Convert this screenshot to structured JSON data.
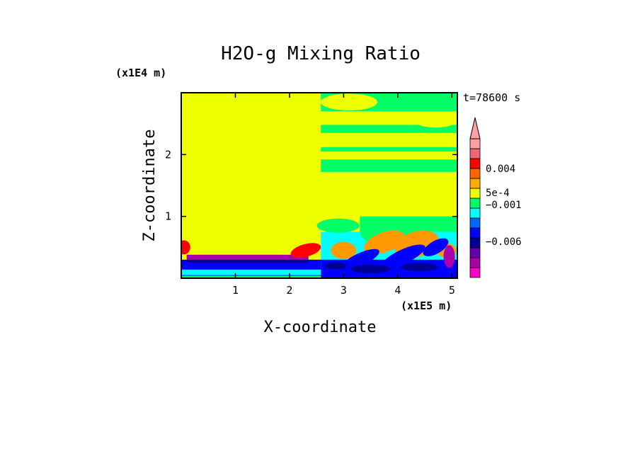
{
  "chart_data": {
    "type": "heatmap",
    "title": "H2O-g Mixing Ratio",
    "xlabel": "X-coordinate",
    "ylabel": "Z-coordinate",
    "x_scale_label": "(x1E5 m)",
    "y_scale_label": "(x1E4 m)",
    "time_label": "t=78600 s",
    "xlim": [
      0,
      5.1
    ],
    "ylim": [
      0,
      3
    ],
    "x_ticks": [
      "1",
      "2",
      "3",
      "4",
      "5"
    ],
    "y_ticks": [
      "1",
      "2"
    ],
    "colorbar": {
      "colors": [
        "#ff00cc",
        "#aa00aa",
        "#6600aa",
        "#000099",
        "#0000ff",
        "#0066ff",
        "#00ffff",
        "#00ff66",
        "#eeff00",
        "#ffaa00",
        "#ff6600",
        "#ff0000",
        "#ee6677",
        "#ffa0a0"
      ],
      "labels": [
        "0.004",
        "5e-4",
        "−0.001",
        "−0.006"
      ]
    },
    "fields": {
      "background": "#eeff00",
      "upper_band": "#00ff66",
      "low_moist": "#ff9900",
      "low_layer": "#aa00aa",
      "low_blue": "#0000ff",
      "cyan": "#00ffff",
      "dark_blue": "#000099",
      "red": "#ff0000"
    }
  }
}
